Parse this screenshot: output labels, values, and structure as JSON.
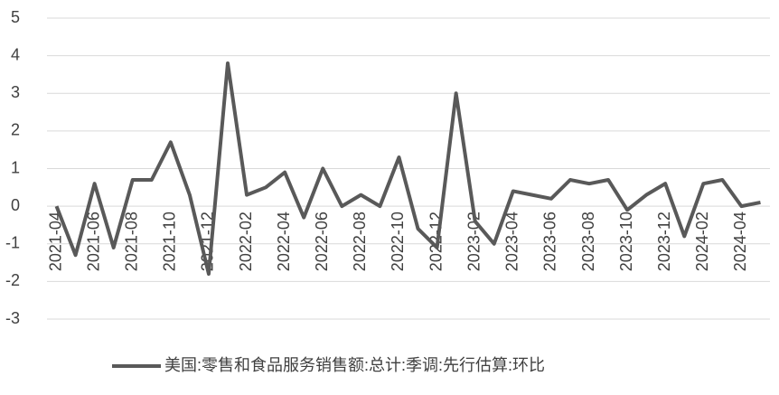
{
  "chart_data": {
    "type": "line",
    "categories": [
      "2021-04",
      null,
      "2021-06",
      null,
      "2021-08",
      null,
      "2021-10",
      null,
      "2021-12",
      null,
      "2022-02",
      null,
      "2022-04",
      null,
      "2022-06",
      null,
      "2022-08",
      null,
      "2022-10",
      null,
      "2022-12",
      null,
      "2023-02",
      null,
      "2023-04",
      null,
      "2023-06",
      null,
      "2023-08",
      null,
      "2023-10",
      null,
      "2023-12",
      null,
      "2024-02",
      null,
      "2024-04",
      null
    ],
    "series": [
      {
        "name": "美国:零售和食品服务销售额:总计:季调:先行估算:环比",
        "color": "#595959",
        "values": [
          0,
          -1.3,
          0.6,
          -1.1,
          0.7,
          0.7,
          1.7,
          0.3,
          -1.8,
          3.8,
          0.3,
          0.5,
          0.9,
          -0.3,
          1.0,
          0.0,
          0.3,
          0.0,
          1.3,
          -0.6,
          -1.1,
          3.0,
          -0.4,
          -1.0,
          0.4,
          0.3,
          0.2,
          0.7,
          0.6,
          0.7,
          -0.1,
          0.3,
          0.6,
          -0.8,
          0.6,
          0.7,
          0.0,
          0.1
        ]
      }
    ],
    "ylim": [
      -3,
      5
    ],
    "yticks": [
      -3,
      -2,
      -1,
      0,
      1,
      2,
      3,
      4,
      5
    ],
    "grid": true,
    "legend": "bottom"
  }
}
